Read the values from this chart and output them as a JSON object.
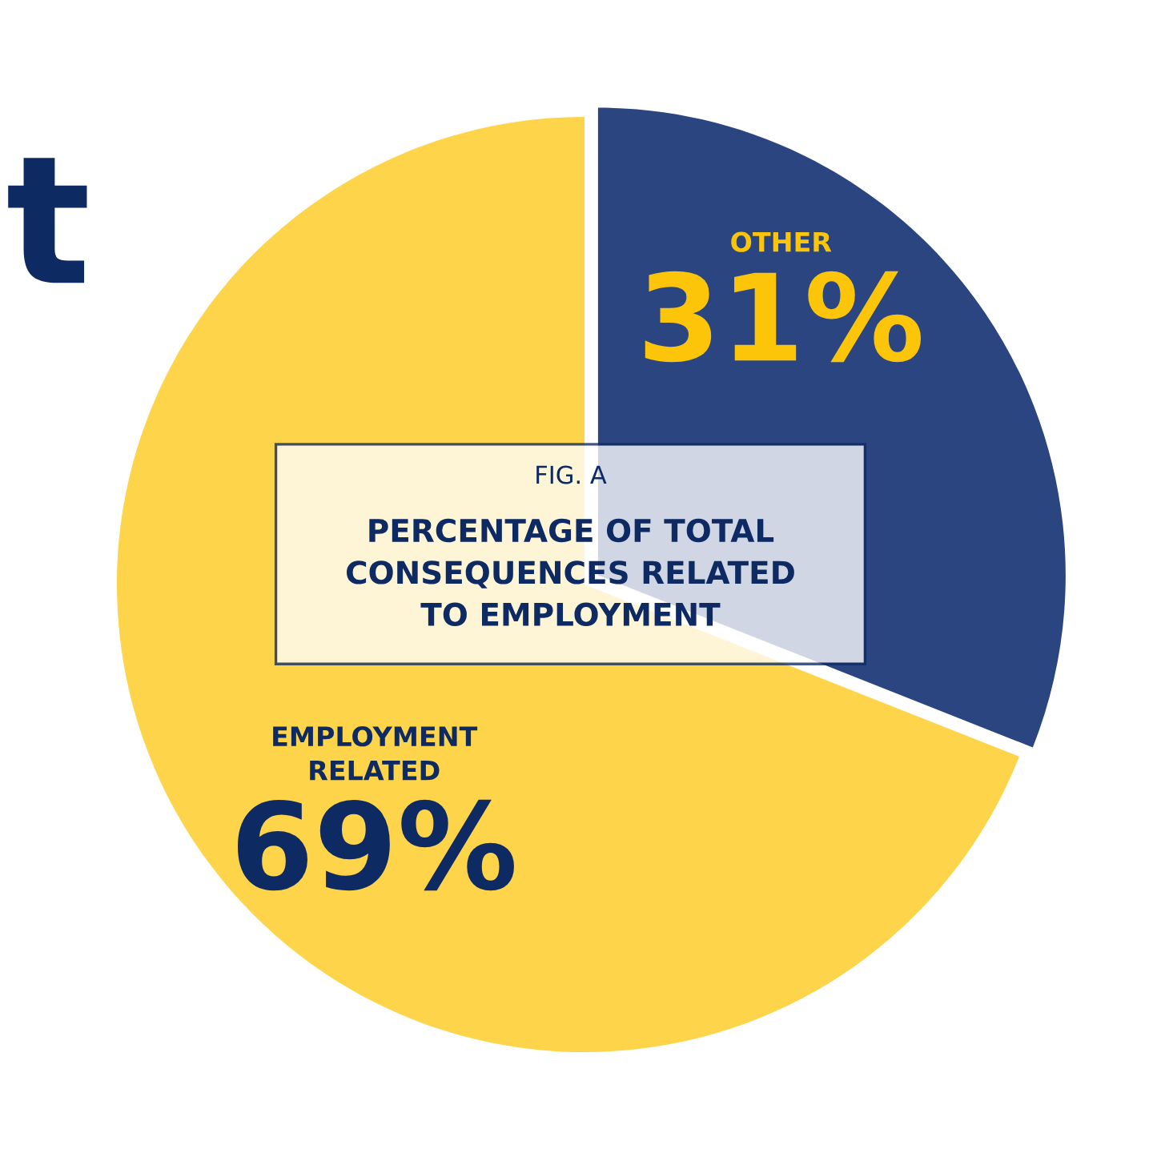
{
  "chart_data": {
    "type": "pie",
    "title": "PERCENTAGE OF TOTAL\nCONSEQUENCES RELATED\nTO EMPLOYMENT",
    "subtitle": "FIG. A",
    "categories": [
      "OTHER",
      "EMPLOYMENT\nRELATED"
    ],
    "values": [
      31,
      69
    ],
    "colors": [
      "#2a4580",
      "#fdd44a"
    ],
    "value_labels": [
      "31%",
      "69%"
    ],
    "annotations": [
      "t"
    ],
    "legend": false
  }
}
